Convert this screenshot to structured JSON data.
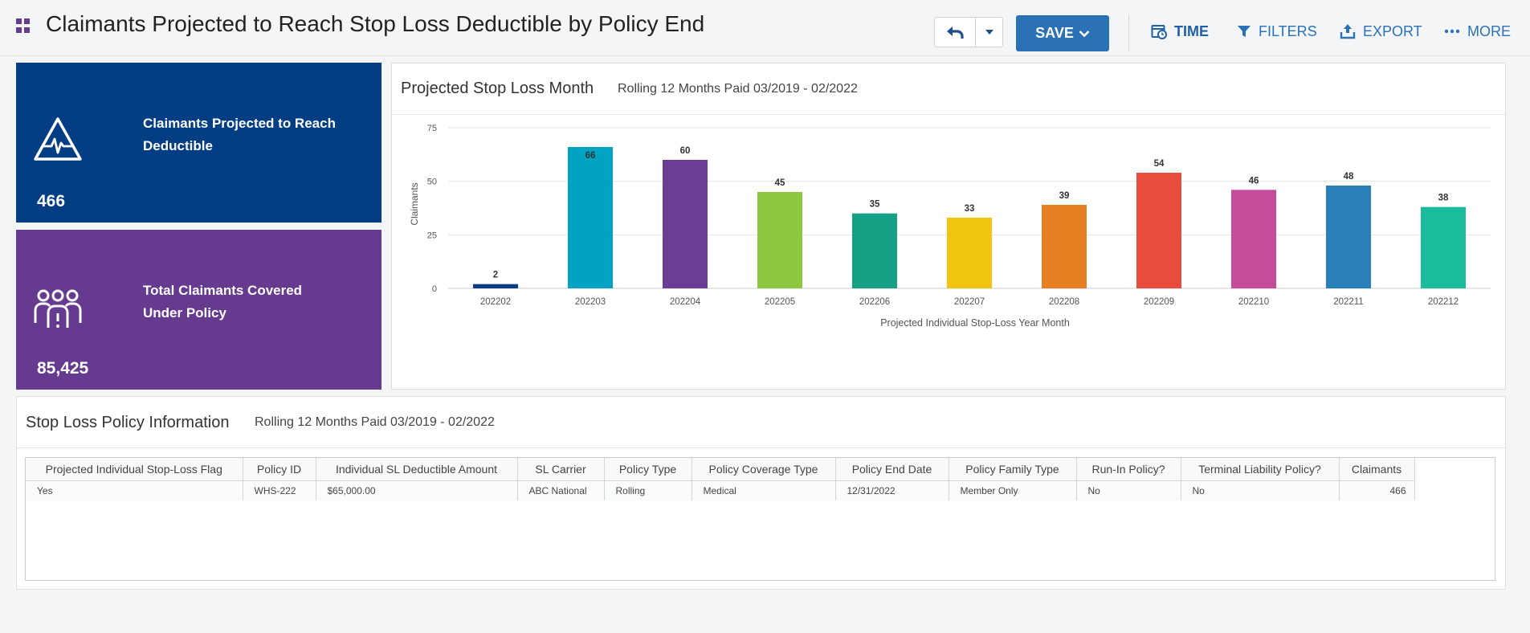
{
  "header": {
    "title": "Claimants Projected to Reach Stop Loss Deductible by Policy End",
    "save_label": "SAVE",
    "tools": {
      "time": "TIME",
      "filters": "FILTERS",
      "export": "EXPORT",
      "more": "MORE"
    }
  },
  "kpis": [
    {
      "label": "Claimants Projected to Reach Deductible",
      "value": "466",
      "icon": "heart-monitor-warning-icon",
      "color": "#033e85"
    },
    {
      "label": "Total Claimants Covered Under Policy",
      "value": "85,425",
      "icon": "people-group-icon",
      "color": "#663b8f"
    }
  ],
  "chart_panel": {
    "title": "Projected Stop Loss Month",
    "subtitle": "Rolling 12 Months Paid 03/2019 - 02/2022"
  },
  "chart_data": {
    "type": "bar",
    "categories": [
      "202202",
      "202203",
      "202204",
      "202205",
      "202206",
      "202207",
      "202208",
      "202209",
      "202210",
      "202211",
      "202212"
    ],
    "values": [
      2,
      66,
      60,
      45,
      35,
      33,
      39,
      54,
      46,
      48,
      38
    ],
    "colors": [
      "#0b3d87",
      "#00a3c2",
      "#6b3d94",
      "#8dc63f",
      "#16a085",
      "#f1c40f",
      "#e67e22",
      "#e74c3c",
      "#c44d9b",
      "#2980b9",
      "#1abc9c"
    ],
    "xlabel": "Projected Individual Stop-Loss Year Month",
    "ylabel": "Claimants",
    "ylim": [
      0,
      75
    ],
    "yticks": [
      0,
      25,
      50,
      75
    ],
    "grid": true
  },
  "table_panel": {
    "title": "Stop Loss Policy Information",
    "subtitle": "Rolling 12 Months Paid 03/2019 - 02/2022",
    "columns": [
      "Projected Individual Stop-Loss Flag",
      "Policy ID",
      "Individual SL Deductible Amount",
      "SL Carrier",
      "Policy Type",
      "Policy Coverage Type",
      "Policy End Date",
      "Policy Family Type",
      "Run-In Policy?",
      "Terminal Liability Policy?",
      "Claimants"
    ],
    "rows": [
      [
        "Yes",
        "WHS-222",
        "$65,000.00",
        "ABC National",
        "Rolling",
        "Medical",
        "12/31/2022",
        "Member Only",
        "No",
        "No",
        "466"
      ]
    ]
  }
}
